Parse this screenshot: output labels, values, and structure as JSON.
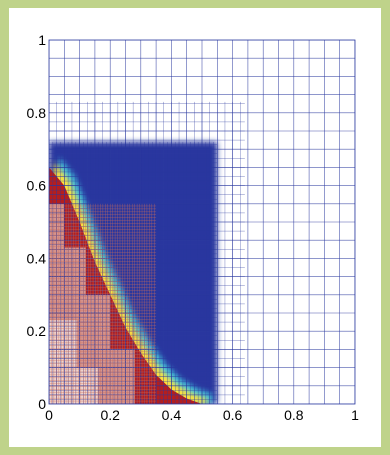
{
  "chart_data": {
    "type": "heatmap",
    "title": "",
    "xlabel": "",
    "ylabel": "",
    "xlim": [
      0,
      1
    ],
    "ylim": [
      0,
      1
    ],
    "x_ticks": [
      "0",
      "0.2",
      "0.4",
      "0.6",
      "0.8",
      "1"
    ],
    "y_ticks": [
      "0",
      "0.2",
      "0.4",
      "0.6",
      "0.8",
      "1"
    ],
    "grid": true,
    "colormap": {
      "high": "#b41e1e",
      "mid": "#ffe23a",
      "low": "#1a2a9a",
      "mesh": "#2b3aa0"
    },
    "front_curve": {
      "x": [
        0.0,
        0.05,
        0.1,
        0.15,
        0.2,
        0.25,
        0.3,
        0.35,
        0.4,
        0.45,
        0.5
      ],
      "y": [
        0.65,
        0.6,
        0.5,
        0.39,
        0.3,
        0.21,
        0.14,
        0.08,
        0.04,
        0.015,
        0.0
      ]
    },
    "refinement_regions": [
      {
        "level": 1,
        "x": [
          0.0,
          1.0
        ],
        "y": [
          0.0,
          1.0
        ]
      },
      {
        "level": 2,
        "x": [
          0.0,
          0.64
        ],
        "y": [
          0.0,
          0.83
        ]
      },
      {
        "level": 3,
        "x": [
          0.0,
          0.55
        ],
        "y": [
          0.0,
          0.72
        ]
      },
      {
        "level": 4,
        "x": [
          0.0,
          0.35
        ],
        "y": [
          0.0,
          0.55
        ]
      }
    ]
  }
}
